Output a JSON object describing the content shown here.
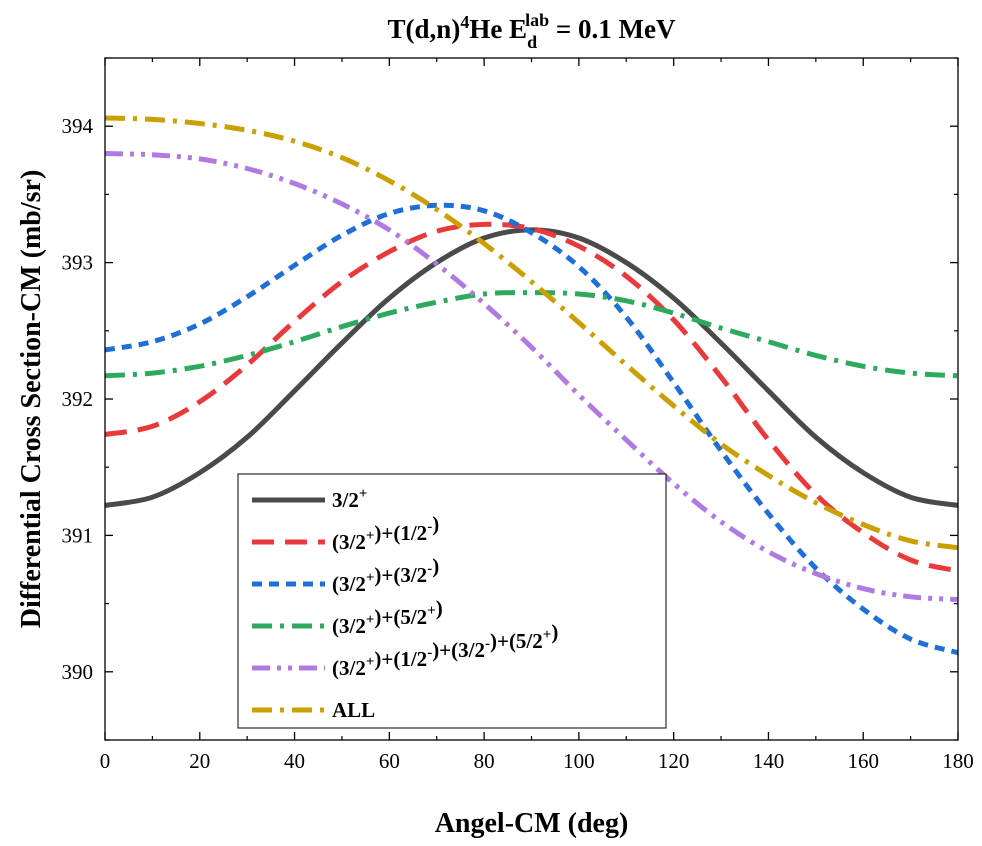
{
  "chart_data": {
    "type": "line",
    "title": {
      "main": "T(d,n)",
      "sup1": "4",
      "he": "He E",
      "sub": "d",
      "sup2": "lab",
      "tail": " = 0.1 MeV"
    },
    "xlabel": "Angel-CM (deg)",
    "ylabel": "Differential Cross Section-CM (mb/sr)",
    "xlim": [
      0,
      180
    ],
    "ylim": [
      389.5,
      394.5
    ],
    "x_ticks": [
      "0",
      "20",
      "40",
      "60",
      "80",
      "100",
      "120",
      "140",
      "160",
      "180"
    ],
    "x_tick_values": [
      0,
      20,
      40,
      60,
      80,
      100,
      120,
      140,
      160,
      180
    ],
    "y_ticks": [
      "390",
      "391",
      "392",
      "393",
      "394"
    ],
    "y_tick_values": [
      390,
      391,
      392,
      393,
      394
    ],
    "grid": false,
    "legend_position": "bottom-left",
    "x": [
      0,
      10,
      20,
      30,
      40,
      50,
      60,
      70,
      80,
      90,
      100,
      110,
      120,
      130,
      140,
      150,
      160,
      170,
      180
    ],
    "series": [
      {
        "legend": {
          "base": "3/2",
          "sup1": "+"
        },
        "color": "#4a4a4a",
        "dash": "solid",
        "values": [
          391.22,
          391.28,
          391.46,
          391.72,
          392.06,
          392.41,
          392.74,
          393.0,
          393.18,
          393.24,
          393.18,
          393.0,
          392.74,
          392.41,
          392.06,
          391.72,
          391.46,
          391.28,
          391.22
        ]
      },
      {
        "legend": {
          "base": "(3/2",
          "sup1": "+",
          "mid": ")+(1/2",
          "sup2": "-",
          "tail": ")"
        },
        "color": "#e8393b",
        "dash": "long-dash",
        "values": [
          391.74,
          391.8,
          391.98,
          392.25,
          392.57,
          392.86,
          393.08,
          393.23,
          393.28,
          393.25,
          393.12,
          392.9,
          392.58,
          392.16,
          391.7,
          391.3,
          391.02,
          390.82,
          390.74
        ]
      },
      {
        "legend": {
          "base": "(3/2",
          "sup1": "+",
          "mid": ")+(3/2",
          "sup2": "-",
          "tail": ")"
        },
        "color": "#1f6fd6",
        "dash": "short-dash",
        "values": [
          392.36,
          392.42,
          392.55,
          392.75,
          392.98,
          393.2,
          393.36,
          393.42,
          393.38,
          393.22,
          392.97,
          392.6,
          392.12,
          391.62,
          391.16,
          390.76,
          390.46,
          390.24,
          390.14
        ]
      },
      {
        "legend": {
          "base": "(3/2",
          "sup1": "+",
          "mid": ")+(5/2",
          "sup2": "+",
          "tail": ")"
        },
        "color": "#2eaa5f",
        "dash": "dash-dot",
        "values": [
          392.17,
          392.19,
          392.24,
          392.32,
          392.42,
          392.53,
          392.63,
          392.71,
          392.77,
          392.78,
          392.77,
          392.72,
          392.63,
          392.52,
          392.42,
          392.32,
          392.24,
          392.19,
          392.17
        ]
      },
      {
        "legend": {
          "base": "(3/2",
          "sup1": "+",
          "mid": ")+(1/2",
          "sup2": "-",
          "mid2": ")+(3/2",
          "sup3": "-",
          "mid3": ")+(5/2",
          "sup4": "+",
          "tail": ")"
        },
        "color": "#b07be0",
        "dash": "dash-dot-dot",
        "values": [
          393.8,
          393.79,
          393.74,
          393.65,
          393.52,
          393.34,
          393.09,
          392.8,
          392.48,
          392.16,
          391.84,
          391.52,
          391.22,
          390.96,
          390.74,
          390.58,
          390.47,
          390.41,
          390.4
        ],
        "plot_values": [
          393.8,
          393.79,
          393.76,
          393.69,
          393.58,
          393.43,
          393.24,
          392.99,
          392.7,
          392.38,
          392.03,
          391.7,
          391.38,
          391.1,
          390.88,
          390.72,
          390.61,
          390.55,
          390.53
        ]
      },
      {
        "legend": {
          "base": "ALL"
        },
        "color": "#c9a000",
        "dash": "dash-dot",
        "values": [
          394.06,
          394.05,
          394.02,
          393.97,
          393.89,
          393.77,
          393.6,
          393.39,
          393.14,
          392.86,
          392.56,
          392.25,
          391.95,
          391.67,
          391.44,
          391.24,
          391.08,
          390.96,
          390.91
        ]
      }
    ]
  }
}
